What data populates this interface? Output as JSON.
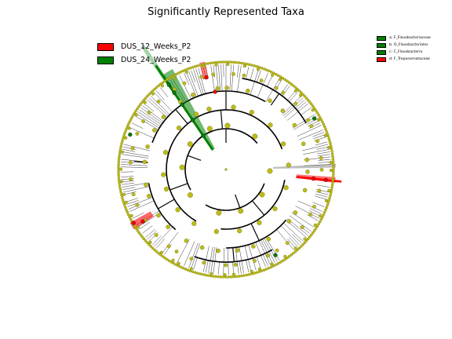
{
  "title": "Significantly Represented Taxa",
  "colors": {
    "group_a": "#ff0000",
    "group_b": "#008000",
    "node": "#bcbc1a",
    "node_edge": "#6b6b00",
    "tree": "#000000"
  },
  "legend": [
    {
      "label": "DUS_12_Weeks_P2",
      "color": "#ff0000"
    },
    {
      "label": "DUS_24_Weeks_P2",
      "color": "#008000"
    }
  ],
  "clade_legend": [
    {
      "label": "a: F_Flavobacteriaceae",
      "color": "#008000"
    },
    {
      "label": "b: O_Flavobacteriales",
      "color": "#008000"
    },
    {
      "label": "c: C_Flavobacteria",
      "color": "#008000"
    },
    {
      "label": "d: F_Treponemataceae",
      "color": "#ff0000"
    }
  ],
  "cladogram": {
    "leaf_count": 260,
    "levels": 6,
    "highlighted_clades": [
      {
        "label": "a",
        "group": "DUS_24_Weeks_P2"
      },
      {
        "label": "b",
        "group": "DUS_24_Weeks_P2"
      },
      {
        "label": "c",
        "group": "DUS_24_Weeks_P2"
      },
      {
        "label": "d",
        "group": "DUS_12_Weeks_P2"
      }
    ]
  }
}
